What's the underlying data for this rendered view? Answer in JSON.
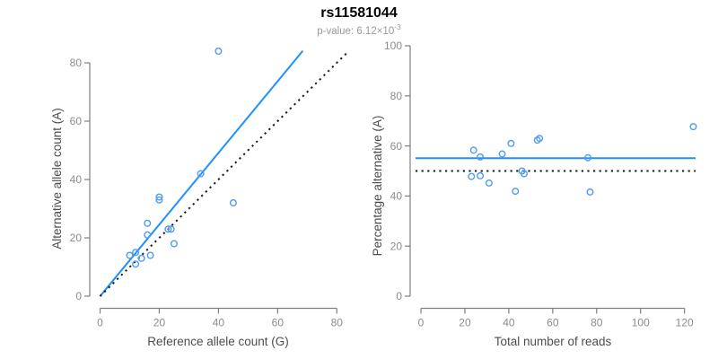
{
  "header": {
    "title": "rs11581044",
    "p_value_prefix": "p-value: 6.12×10",
    "p_value_exponent": "-3"
  },
  "colors": {
    "accent": "#1E90FF",
    "point": "#4D9CF5",
    "black_line": "#1a1a1a",
    "axis": "#7f7f7f",
    "tick_label": "#8c8c8c",
    "axis_title": "#4d4d4d",
    "title": "#000000",
    "subtitle": "#9a9a9a"
  },
  "chart_data": [
    {
      "type": "scatter",
      "panel": "left",
      "xlabel": "Reference allele count (G)",
      "ylabel": "Alternative allele count (A)",
      "xlim": [
        0,
        80
      ],
      "ylim": [
        0,
        80
      ],
      "xticks": [
        0,
        20,
        40,
        60,
        80
      ],
      "yticks": [
        0,
        20,
        40,
        60,
        80
      ],
      "grid": false,
      "legend": "none",
      "points": [
        [
          40,
          84
        ],
        [
          34,
          42
        ],
        [
          20,
          34
        ],
        [
          20,
          33
        ],
        [
          45,
          32
        ],
        [
          16,
          25
        ],
        [
          23,
          23
        ],
        [
          24,
          23
        ],
        [
          16,
          21
        ],
        [
          25,
          18
        ],
        [
          10,
          14
        ],
        [
          12,
          15
        ],
        [
          17,
          14
        ],
        [
          14,
          13
        ],
        [
          12,
          11
        ]
      ],
      "lines": [
        {
          "name": "fitted-allelic-ratio-line",
          "style": "solid",
          "color": "accent",
          "x1": 0,
          "y1": 0,
          "x2": 68.5,
          "y2": 84.1
        },
        {
          "name": "identity-line",
          "style": "dotted",
          "color": "black_line",
          "x1": 0,
          "y1": 0,
          "x2": 84,
          "y2": 84
        }
      ]
    },
    {
      "type": "scatter",
      "panel": "right",
      "xlabel": "Total number of reads",
      "ylabel": "Percentage alternative (A)",
      "xlim": [
        0,
        120
      ],
      "ylim": [
        0,
        100
      ],
      "xticks": [
        0,
        20,
        40,
        60,
        80,
        100,
        120
      ],
      "yticks": [
        0,
        20,
        40,
        60,
        80,
        100
      ],
      "grid": false,
      "legend": "none",
      "points": [
        [
          124,
          67.7
        ],
        [
          76,
          55.3
        ],
        [
          54,
          63.0
        ],
        [
          53,
          62.3
        ],
        [
          77,
          41.6
        ],
        [
          41,
          61.0
        ],
        [
          46,
          50.0
        ],
        [
          47,
          48.9
        ],
        [
          37,
          56.8
        ],
        [
          43,
          41.9
        ],
        [
          24,
          58.3
        ],
        [
          27,
          55.6
        ],
        [
          31,
          45.2
        ],
        [
          27,
          48.1
        ],
        [
          23,
          47.8
        ]
      ],
      "lines": [
        {
          "name": "mean-percentage-line",
          "style": "solid",
          "color": "accent",
          "y": 55.1
        },
        {
          "name": "null-50-percent-line",
          "style": "dotted",
          "color": "black_line",
          "y": 50
        }
      ]
    }
  ]
}
